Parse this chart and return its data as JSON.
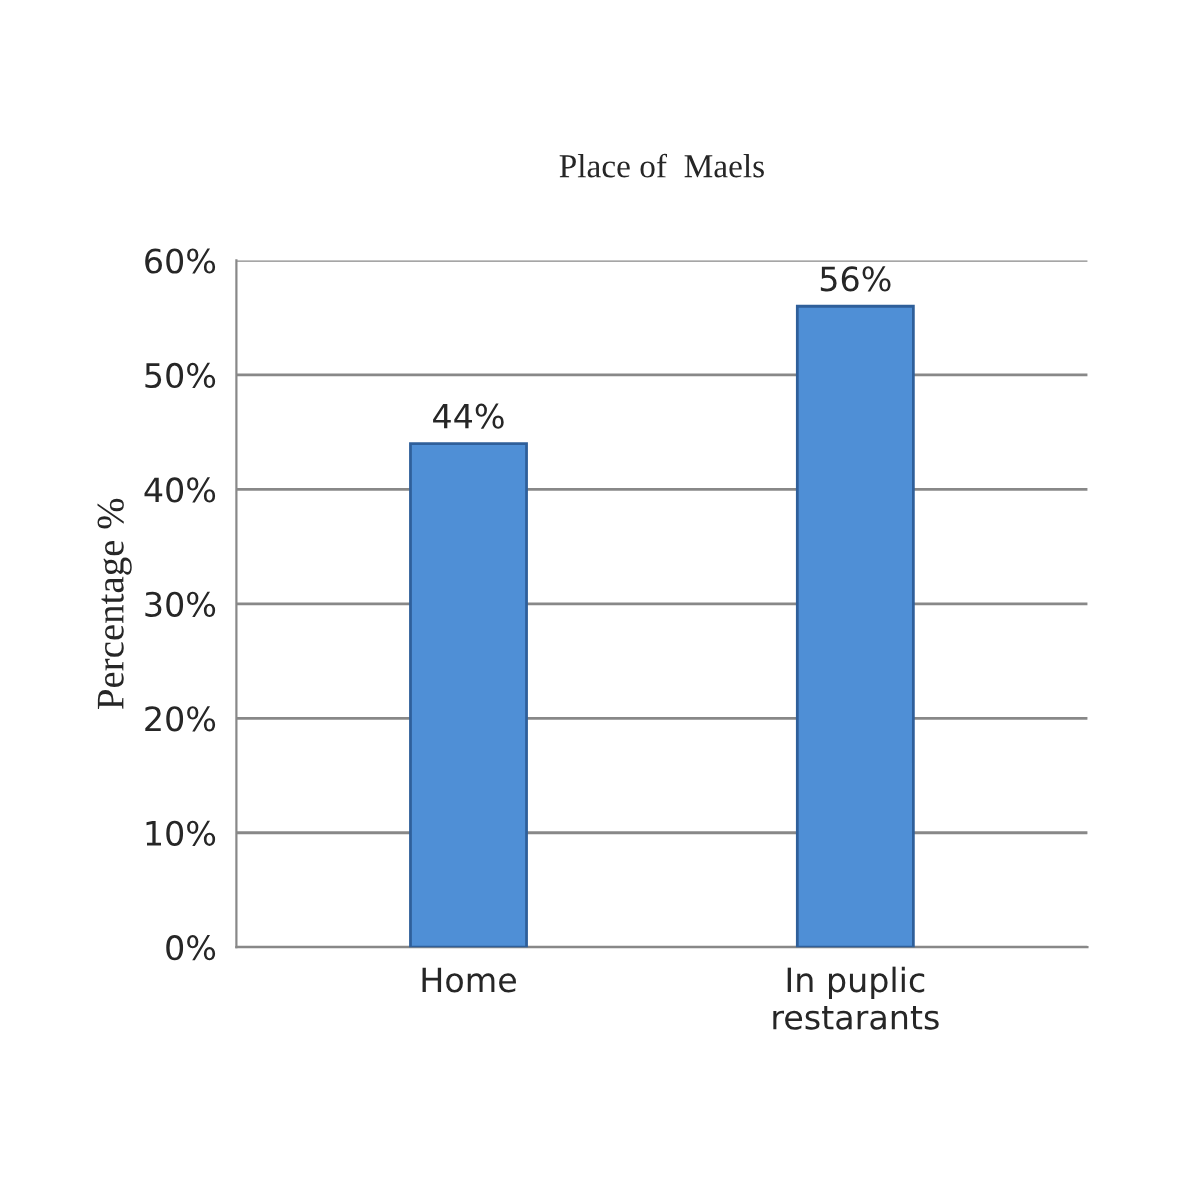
{
  "chart_data": {
    "type": "bar",
    "title": "Place of  Maels",
    "ylabel": "Percentage %",
    "categories": [
      "Home",
      "In puplic\nrestarants"
    ],
    "values": [
      44,
      56
    ],
    "color": "#4f8fd6",
    "value_labels": [
      "44%",
      "56%"
    ],
    "ylim": [
      0,
      60
    ],
    "yticks": [
      {
        "value": 0,
        "label": "0%"
      },
      {
        "value": 10,
        "label": "10%"
      },
      {
        "value": 20,
        "label": "20%"
      },
      {
        "value": 30,
        "label": "30%"
      },
      {
        "value": 40,
        "label": "40%"
      },
      {
        "value": 50,
        "label": "50%"
      },
      {
        "value": 60,
        "label": "60%"
      }
    ],
    "grid": "y",
    "legend": false
  }
}
